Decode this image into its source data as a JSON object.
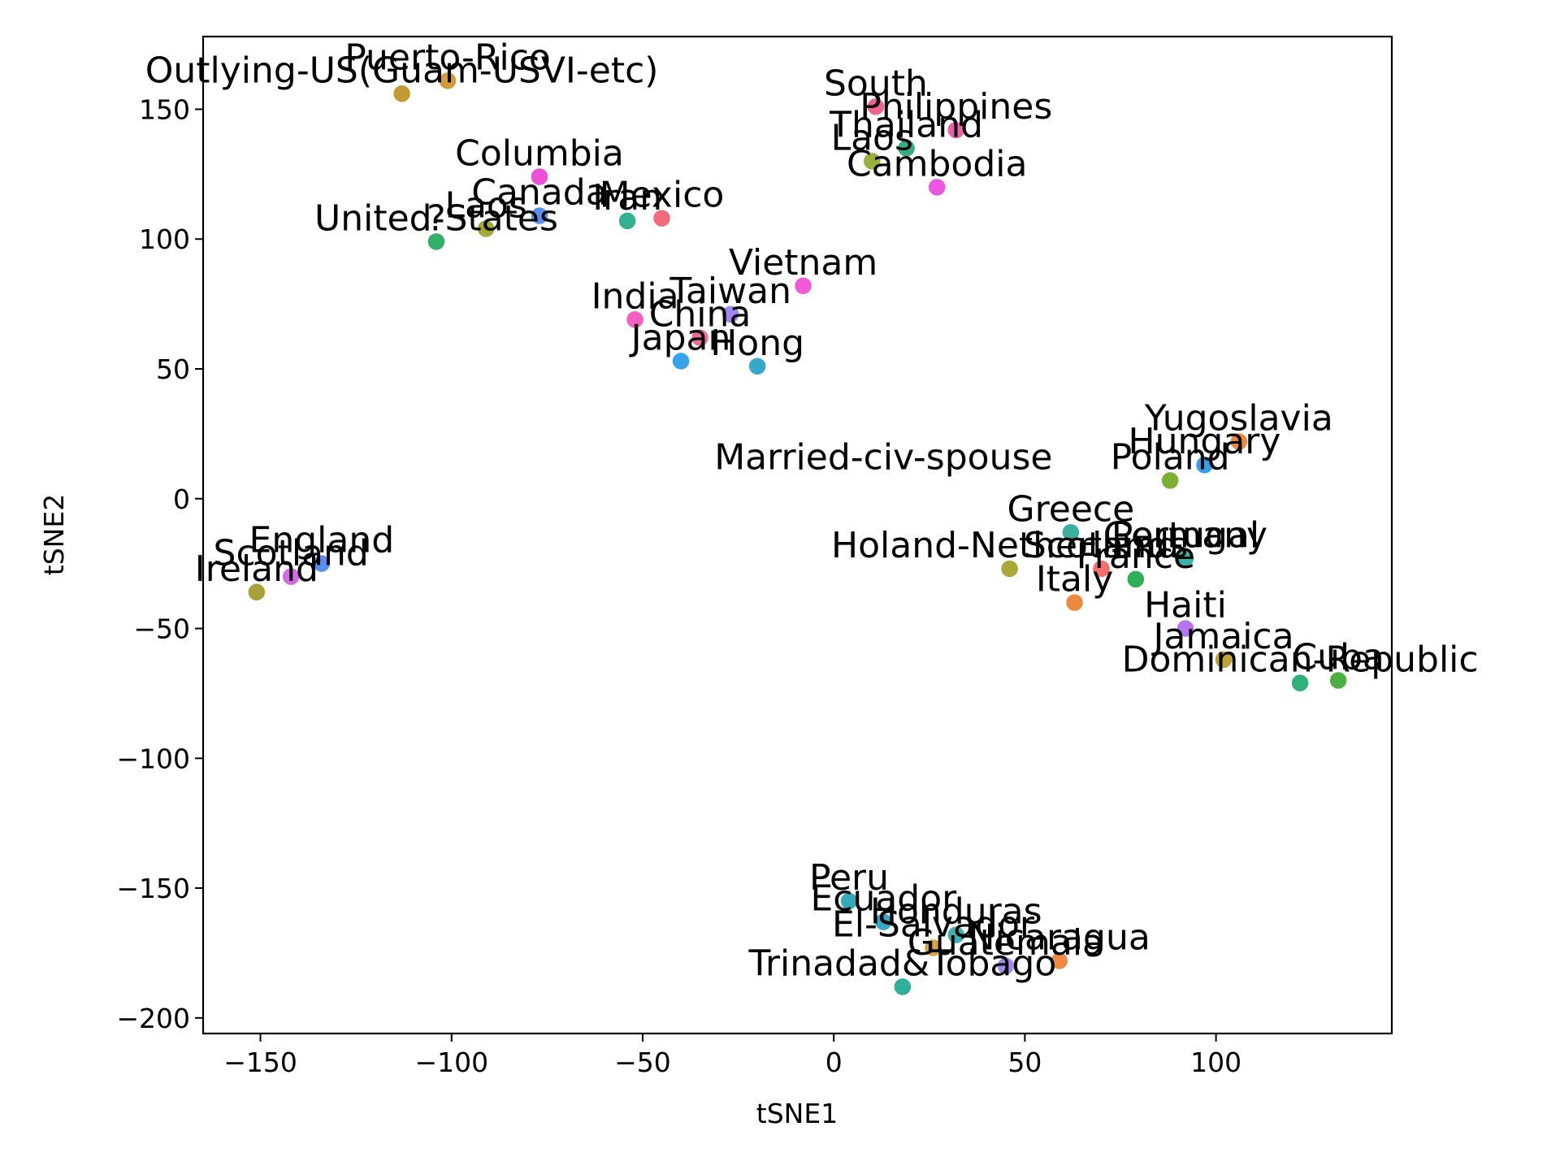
{
  "chart_data": {
    "type": "scatter",
    "xlabel": "tSNE1",
    "ylabel": "tSNE2",
    "xlim": [
      -165,
      146
    ],
    "ylim": [
      -206,
      178
    ],
    "xticks": [
      -150,
      -100,
      -50,
      0,
      50,
      100
    ],
    "yticks": [
      150,
      100,
      50,
      0,
      -50,
      -100,
      -150,
      -200
    ],
    "xtick_labels": [
      "−150",
      "−100",
      "−50",
      "0",
      "50",
      "100"
    ],
    "ytick_labels": [
      "150",
      "100",
      "50",
      "0",
      "−50",
      "−100",
      "−150",
      "−200"
    ],
    "points": [
      {
        "label": "Puerto-Rico",
        "x": -101,
        "y": 161,
        "color": "#d09a3e"
      },
      {
        "label": "Outlying-US(Guam-USVI-etc)",
        "x": -113,
        "y": 156,
        "color": "#c29b34"
      },
      {
        "label": "Columbia",
        "x": -77,
        "y": 124,
        "color": "#ec4fd8"
      },
      {
        "label": "Canada",
        "x": -77,
        "y": 109,
        "color": "#5b8ef2"
      },
      {
        "label": "Laos",
        "x": -91,
        "y": 104,
        "color": "#a5a838"
      },
      {
        "label": "Iran",
        "x": -54,
        "y": 107,
        "color": "#32b092"
      },
      {
        "label": "Mexico",
        "x": -45,
        "y": 108,
        "color": "#f26b7a"
      },
      {
        "label": "United-States",
        "x": -104,
        "y": 99,
        "color": "#32b06a"
      },
      {
        "label": "?",
        "x": -104,
        "y": 99,
        "color": "#32b06a"
      },
      {
        "label": "South",
        "x": 11,
        "y": 151,
        "color": "#f0628f"
      },
      {
        "label": "Philippines",
        "x": 32,
        "y": 142,
        "color": "#ef5fa9"
      },
      {
        "label": "Thailand",
        "x": 19,
        "y": 135,
        "color": "#38ae7e"
      },
      {
        "label": "Laos",
        "x": 10,
        "y": 130,
        "color": "#9cb03c"
      },
      {
        "label": "Cambodia",
        "x": 27,
        "y": 120,
        "color": "#ea57e0"
      },
      {
        "label": "Vietnam",
        "x": -8,
        "y": 82,
        "color": "#f05ad6"
      },
      {
        "label": "Taiwan",
        "x": -27,
        "y": 71,
        "color": "#a484ef"
      },
      {
        "label": "India",
        "x": -52,
        "y": 69,
        "color": "#f45fc0"
      },
      {
        "label": "China",
        "x": -35,
        "y": 62,
        "color": "#f06a9a"
      },
      {
        "label": "Japan",
        "x": -40,
        "y": 53,
        "color": "#3aa2e8"
      },
      {
        "label": "Hong",
        "x": -20,
        "y": 51,
        "color": "#37a8ca"
      },
      {
        "label": "Yugoslavia",
        "x": 106,
        "y": 22,
        "color": "#ee8a3f"
      },
      {
        "label": "Hungary",
        "x": 97,
        "y": 13,
        "color": "#3a9fe2"
      },
      {
        "label": "Poland",
        "x": 88,
        "y": 7,
        "color": "#7eae34"
      },
      {
        "label": "Married-civ-spouse",
        "x": 13,
        "y": 7,
        "color": "#ffffff"
      },
      {
        "label": "Greece",
        "x": 62,
        "y": -13,
        "color": "#3bb0a0"
      },
      {
        "label": "Portugal",
        "x": 92,
        "y": -23,
        "color": "#37b4a8"
      },
      {
        "label": "Germany",
        "x": 92,
        "y": -23,
        "color": "#37b4a8"
      },
      {
        "label": "France",
        "x": 79,
        "y": -31,
        "color": "#2fb056"
      },
      {
        "label": "Holand-Netherlands",
        "x": 46,
        "y": -27,
        "color": "#a9a838"
      },
      {
        "label": "Scotland",
        "x": 70,
        "y": -27,
        "color": "#f56f6f"
      },
      {
        "label": "Italy",
        "x": 63,
        "y": -40,
        "color": "#ee8a3f"
      },
      {
        "label": "Haiti",
        "x": 92,
        "y": -50,
        "color": "#b774ef"
      },
      {
        "label": "Jamaica",
        "x": 102,
        "y": -62,
        "color": "#c0a238"
      },
      {
        "label": "Dominican-Republic",
        "x": 122,
        "y": -71,
        "color": "#2fb07a"
      },
      {
        "label": "Cuba",
        "x": 132,
        "y": -70,
        "color": "#4cb040"
      },
      {
        "label": "England",
        "x": -134,
        "y": -25,
        "color": "#5a8ef0"
      },
      {
        "label": "Scotland",
        "x": -142,
        "y": -30,
        "color": "#d46ae6"
      },
      {
        "label": "Ireland",
        "x": -151,
        "y": -36,
        "color": "#a9a03a"
      },
      {
        "label": "Peru",
        "x": 4,
        "y": -155,
        "color": "#38a9b8"
      },
      {
        "label": "Ecuador",
        "x": 13,
        "y": -163,
        "color": "#3aa6c6"
      },
      {
        "label": "Honduras",
        "x": 32,
        "y": -168,
        "color": "#3fb0b2"
      },
      {
        "label": "El-Salvador",
        "x": 26,
        "y": -173,
        "color": "#d4a442"
      },
      {
        "label": "Guatemala",
        "x": 45,
        "y": -180,
        "color": "#a488ef"
      },
      {
        "label": "Nicaragua",
        "x": 59,
        "y": -178,
        "color": "#f08a45"
      },
      {
        "label": "Trinadad&Tobago",
        "x": 18,
        "y": -188,
        "color": "#2fb09a"
      }
    ]
  }
}
